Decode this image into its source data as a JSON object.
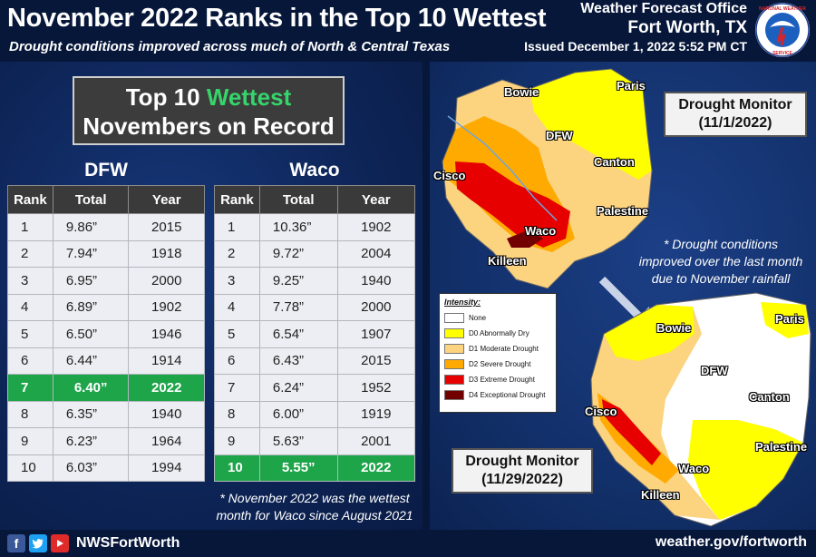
{
  "header": {
    "title": "November 2022 Ranks in the Top 10 Wettest",
    "subtitle": "Drought conditions improved across much of North & Central Texas",
    "office_line1": "Weather Forecast Office",
    "office_line2": "Fort Worth, TX",
    "issued": "Issued December 1, 2022 5:52 PM CT",
    "logo_text": "NATIONAL WEATHER SERVICE"
  },
  "left": {
    "box_line1_prefix": "Top 10 ",
    "box_line1_highlight": "Wettest",
    "box_line2": "Novembers on Record",
    "dfw": {
      "heading": "DFW",
      "columns": [
        "Rank",
        "Total",
        "Year"
      ],
      "rows": [
        [
          "1",
          "9.86”",
          "2015"
        ],
        [
          "2",
          "7.94”",
          "1918"
        ],
        [
          "3",
          "6.95”",
          "2000"
        ],
        [
          "4",
          "6.89”",
          "1902"
        ],
        [
          "5",
          "6.50”",
          "1946"
        ],
        [
          "6",
          "6.44”",
          "1914"
        ],
        [
          "7",
          "6.40”",
          "2022"
        ],
        [
          "8",
          "6.35”",
          "1940"
        ],
        [
          "9",
          "6.23”",
          "1964"
        ],
        [
          "10",
          "6.03”",
          "1994"
        ]
      ],
      "highlight_row": 6
    },
    "waco": {
      "heading": "Waco",
      "columns": [
        "Rank",
        "Total",
        "Year"
      ],
      "rows": [
        [
          "1",
          "10.36”",
          "1902"
        ],
        [
          "2",
          "9.72”",
          "2004"
        ],
        [
          "3",
          "9.25”",
          "1940"
        ],
        [
          "4",
          "7.78”",
          "2000"
        ],
        [
          "5",
          "6.54”",
          "1907"
        ],
        [
          "6",
          "6.43”",
          "2015"
        ],
        [
          "7",
          "6.24”",
          "1952"
        ],
        [
          "8",
          "6.00”",
          "1919"
        ],
        [
          "9",
          "5.63”",
          "2001"
        ],
        [
          "10",
          "5.55”",
          "2022"
        ]
      ],
      "highlight_row": 9
    },
    "note_line1": "* November 2022 was the wettest",
    "note_line2": "month for Waco since August 2021"
  },
  "right": {
    "dm1_line1": "Drought Monitor",
    "dm1_line2": "(11/1/2022)",
    "dm2_line1": "Drought Monitor",
    "dm2_line2": "(11/29/2022)",
    "note_line1": "* Drought conditions",
    "note_line2": "improved over the last month",
    "note_line3": "due to November rainfall",
    "legend": {
      "title": "Intensity:",
      "items": [
        {
          "label": "None",
          "color": "#ffffff"
        },
        {
          "label": "D0 Abnormally Dry",
          "color": "#ffff00"
        },
        {
          "label": "D1 Moderate Drought",
          "color": "#fcd37f"
        },
        {
          "label": "D2 Severe Drought",
          "color": "#ffaa00"
        },
        {
          "label": "D3 Extreme Drought",
          "color": "#e60000"
        },
        {
          "label": "D4 Exceptional Drought",
          "color": "#730000"
        }
      ]
    },
    "map1_labels": [
      "Bowie",
      "Paris",
      "DFW",
      "Canton",
      "Cisco",
      "Palestine",
      "Waco",
      "Killeen"
    ],
    "map2_labels": [
      "Bowie",
      "Paris",
      "DFW",
      "Canton",
      "Cisco",
      "Palestine",
      "Waco",
      "Killeen"
    ]
  },
  "footer": {
    "handle": "NWSFortWorth",
    "website": "weather.gov/fortworth",
    "icons": [
      "facebook-icon",
      "twitter-icon",
      "youtube-icon"
    ]
  }
}
